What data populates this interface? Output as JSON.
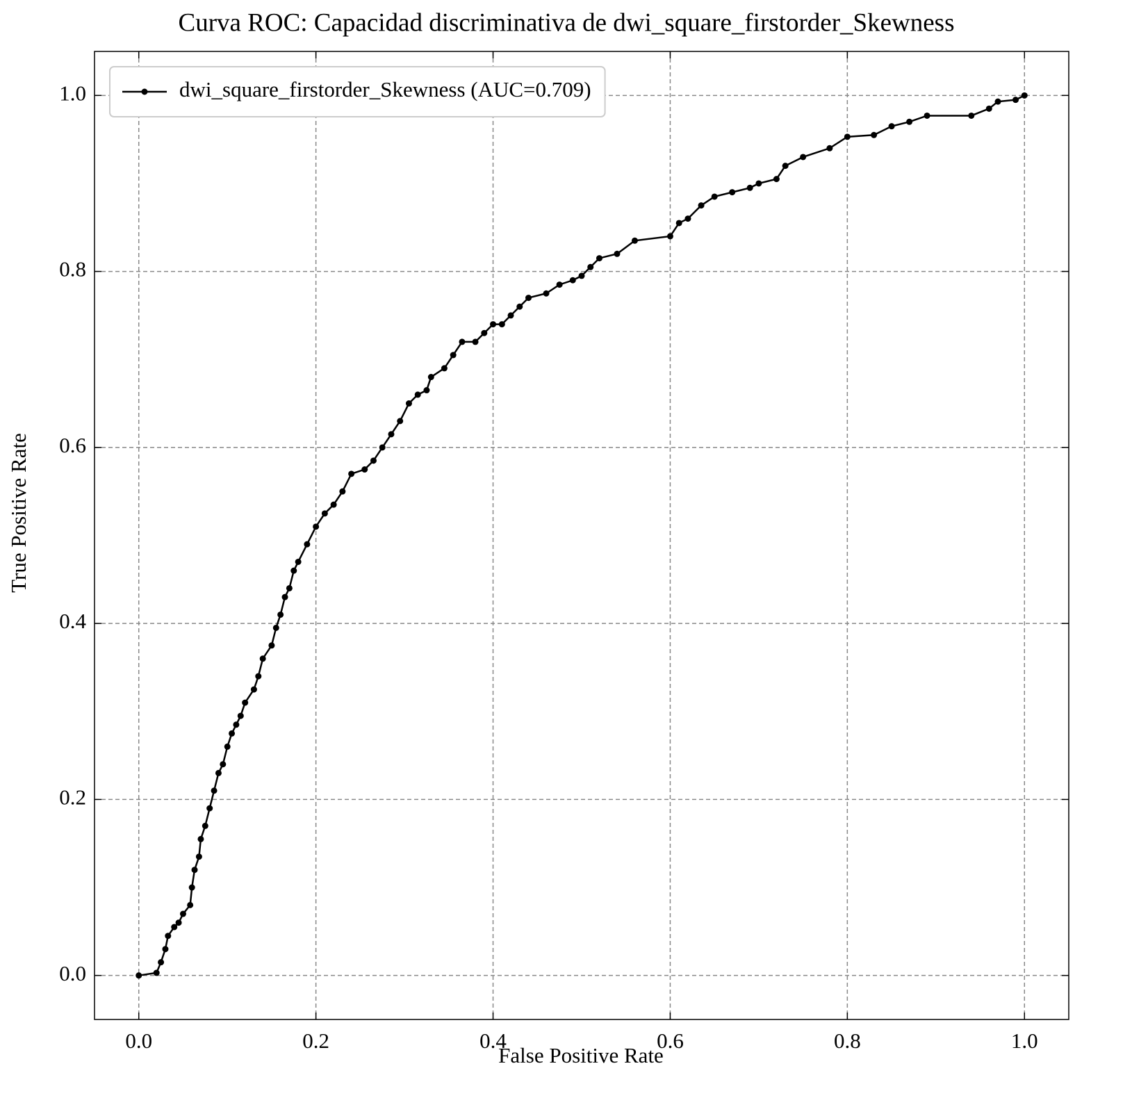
{
  "chart_data": {
    "type": "line",
    "title": "Curva ROC: Capacidad discriminativa de dwi_square_firstorder_Skewness",
    "xlabel": "False Positive Rate",
    "ylabel": "True Positive Rate",
    "xlim": [
      -0.05,
      1.05
    ],
    "ylim": [
      -0.05,
      1.05
    ],
    "xticks": [
      {
        "value": 0,
        "label": "0.0"
      },
      0.2,
      0.4,
      0.6,
      0.8,
      {
        "value": 1,
        "label": "1.0"
      }
    ],
    "yticks": [
      {
        "value": 0,
        "label": "0.0"
      },
      0.2,
      0.4,
      0.6,
      0.8,
      {
        "value": 1,
        "label": "1.0"
      }
    ],
    "grid": true,
    "legend": "upper left",
    "series": [
      {
        "name": "dwi_square_firstorder_Skewness (AUC=0.709)",
        "color": "#000000",
        "x": [
          0,
          0.02,
          0.025,
          0.03,
          0.033,
          0.04,
          0.045,
          0.05,
          0.058,
          0.06,
          0.063,
          0.068,
          0.07,
          0.075,
          0.08,
          0.085,
          0.09,
          0.095,
          0.1,
          0.105,
          0.11,
          0.115,
          0.12,
          0.13,
          0.135,
          0.14,
          0.15,
          0.155,
          0.16,
          0.165,
          0.17,
          0.175,
          0.18,
          0.19,
          0.2,
          0.21,
          0.22,
          0.23,
          0.24,
          0.255,
          0.265,
          0.275,
          0.285,
          0.295,
          0.305,
          0.315,
          0.325,
          0.33,
          0.345,
          0.355,
          0.365,
          0.38,
          0.39,
          0.4,
          0.41,
          0.42,
          0.43,
          0.44,
          0.46,
          0.475,
          0.49,
          0.5,
          0.51,
          0.52,
          0.54,
          0.56,
          0.6,
          0.61,
          0.62,
          0.635,
          0.65,
          0.67,
          0.69,
          0.7,
          0.72,
          0.73,
          0.75,
          0.78,
          0.8,
          0.83,
          0.85,
          0.87,
          0.89,
          0.94,
          0.96,
          0.97,
          0.99,
          1.0
        ],
        "values": [
          0,
          0.003,
          0.015,
          0.03,
          0.045,
          0.055,
          0.06,
          0.07,
          0.08,
          0.1,
          0.12,
          0.135,
          0.155,
          0.17,
          0.19,
          0.21,
          0.23,
          0.24,
          0.26,
          0.275,
          0.285,
          0.295,
          0.31,
          0.325,
          0.34,
          0.36,
          0.375,
          0.395,
          0.41,
          0.43,
          0.44,
          0.46,
          0.47,
          0.49,
          0.51,
          0.525,
          0.535,
          0.55,
          0.57,
          0.575,
          0.585,
          0.6,
          0.615,
          0.63,
          0.65,
          0.66,
          0.665,
          0.68,
          0.69,
          0.705,
          0.72,
          0.72,
          0.73,
          0.74,
          0.74,
          0.75,
          0.76,
          0.77,
          0.775,
          0.785,
          0.79,
          0.795,
          0.805,
          0.815,
          0.82,
          0.835,
          0.84,
          0.855,
          0.86,
          0.875,
          0.885,
          0.89,
          0.895,
          0.9,
          0.905,
          0.92,
          0.93,
          0.94,
          0.953,
          0.955,
          0.965,
          0.97,
          0.977,
          0.977,
          0.985,
          0.993,
          0.995,
          1.0
        ]
      }
    ]
  }
}
